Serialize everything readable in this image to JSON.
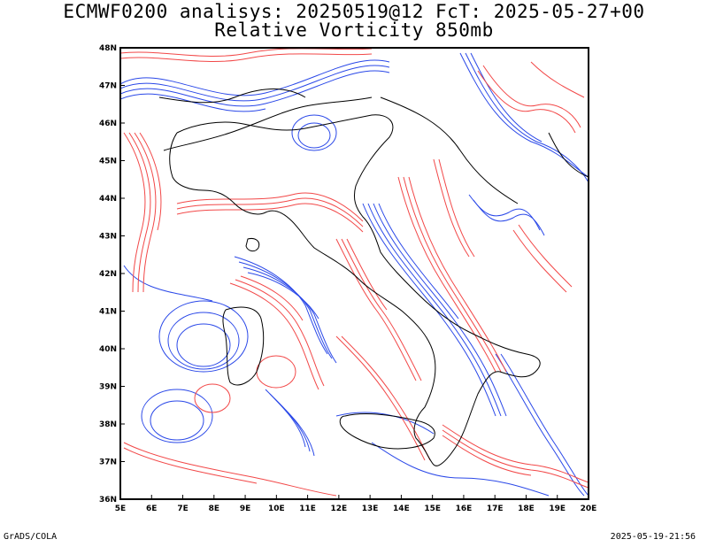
{
  "header": {
    "title_line1": "ECMWF0200 analisys: 20250519@12 FcT: 2025-05-27+00",
    "title_line2": "Relative Vorticity 850mb"
  },
  "map": {
    "projection": "lat-lon",
    "region": "Italy",
    "lon_labels": [
      "5E",
      "6E",
      "7E",
      "8E",
      "9E",
      "10E",
      "11E",
      "12E",
      "13E",
      "14E",
      "15E",
      "16E",
      "17E",
      "18E",
      "19E",
      "20E"
    ],
    "lat_labels": [
      "36N",
      "37N",
      "38N",
      "39N",
      "40N",
      "41N",
      "42N",
      "43N",
      "44N",
      "45N",
      "46N",
      "47N",
      "48N"
    ],
    "lon_range": [
      5,
      20
    ],
    "lat_range": [
      36,
      48
    ],
    "field": "relative vorticity contours",
    "colors": {
      "positive": "#f04040",
      "negative": "#2040e0",
      "coastline": "#000000"
    }
  },
  "footer": {
    "left": "GrADS/COLA",
    "right": "2025-05-19-21:56"
  }
}
